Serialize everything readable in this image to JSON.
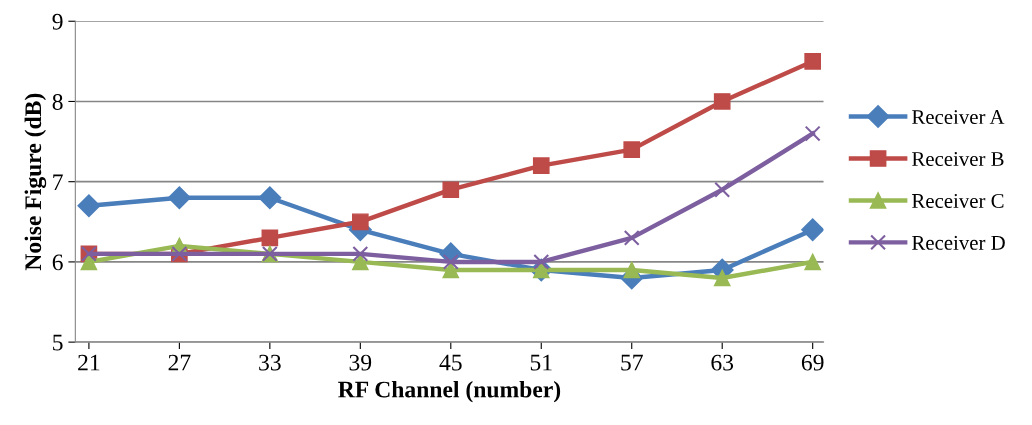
{
  "chart_data": {
    "type": "line",
    "xlabel": "RF Channel (number)",
    "ylabel": "Noise Figure (dB)",
    "categories": [
      "21",
      "27",
      "33",
      "39",
      "45",
      "51",
      "57",
      "63",
      "69"
    ],
    "ylim": [
      5,
      9
    ],
    "yticks": [
      5,
      6,
      7,
      8,
      9
    ],
    "grid": "y",
    "legend": "right",
    "line_style": "solid",
    "series": [
      {
        "name": "Receiver A",
        "color": "#4a7ebb",
        "marker": "diamond",
        "values": [
          6.7,
          6.8,
          6.8,
          6.4,
          6.1,
          5.9,
          5.8,
          5.9,
          6.4
        ]
      },
      {
        "name": "Receiver B",
        "color": "#be4b48",
        "marker": "square",
        "values": [
          6.1,
          6.1,
          6.3,
          6.5,
          6.9,
          7.2,
          7.4,
          8.0,
          8.5
        ]
      },
      {
        "name": "Receiver C",
        "color": "#98b954",
        "marker": "triangle",
        "values": [
          6.0,
          6.2,
          6.1,
          6.0,
          5.9,
          5.9,
          5.9,
          5.8,
          6.0
        ]
      },
      {
        "name": "Receiver D",
        "color": "#7d5fa0",
        "marker": "cross",
        "values": [
          6.1,
          6.1,
          6.1,
          6.1,
          6.0,
          6.0,
          6.3,
          6.9,
          7.6
        ]
      }
    ]
  }
}
